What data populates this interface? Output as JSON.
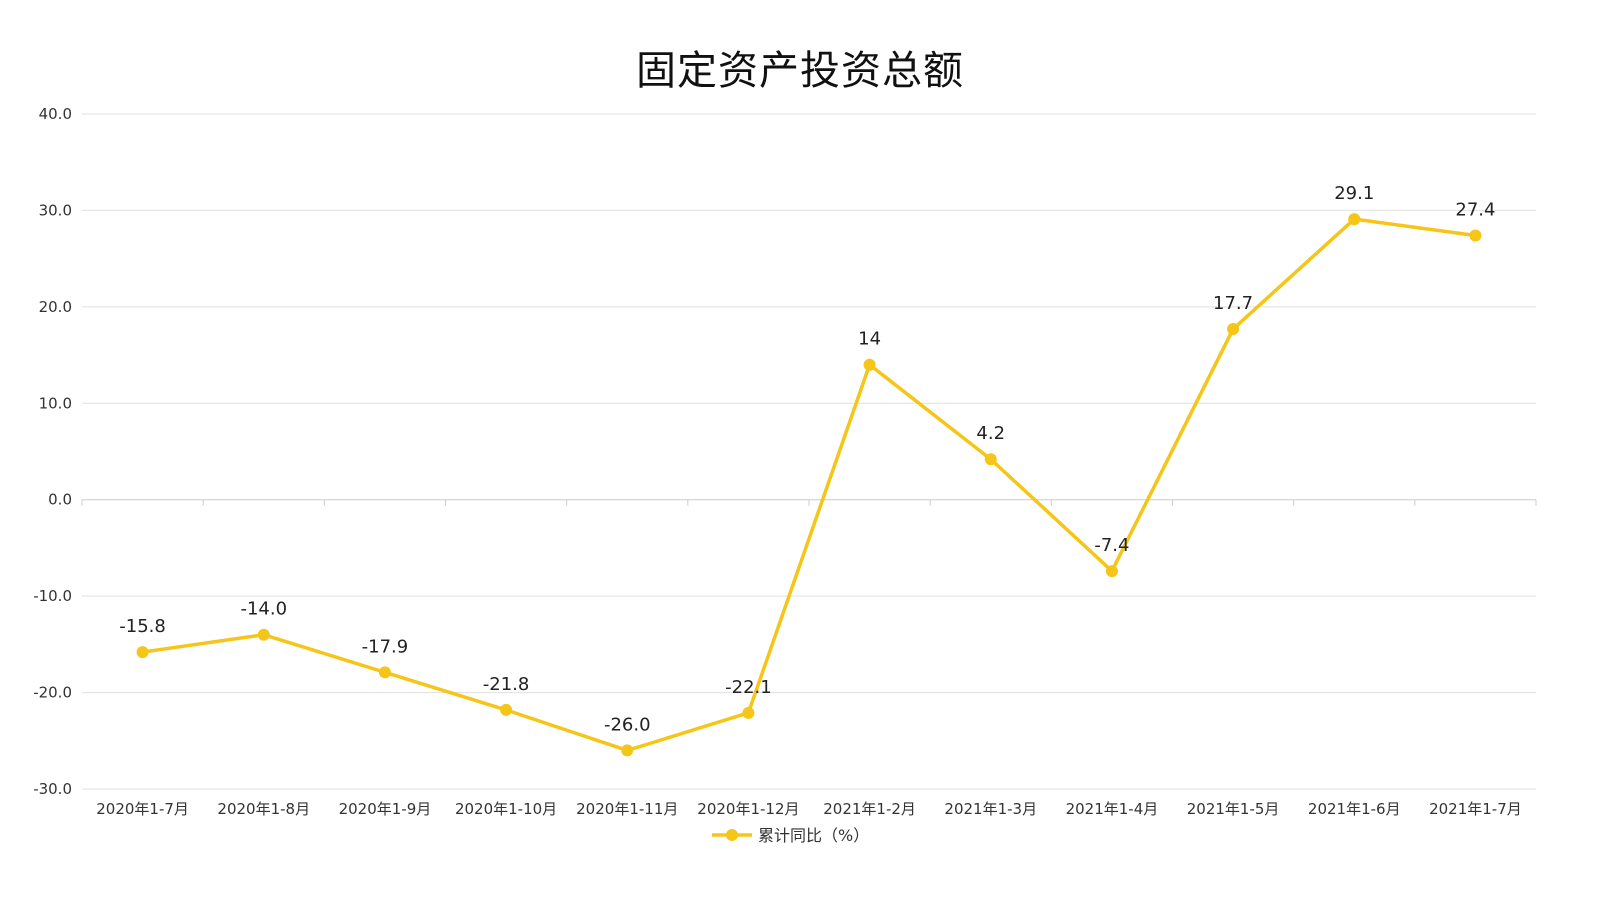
{
  "chart_data": {
    "type": "line",
    "title": "固定资产投资总额",
    "categories": [
      "2020年1-7月",
      "2020年1-8月",
      "2020年1-9月",
      "2020年1-10月",
      "2020年1-11月",
      "2020年1-12月",
      "2021年1-2月",
      "2021年1-3月",
      "2021年1-4月",
      "2021年1-5月",
      "2021年1-6月",
      "2021年1-7月"
    ],
    "series": [
      {
        "name": "累计同比（%）",
        "values": [
          -15.8,
          -14.0,
          -17.9,
          -21.8,
          -26.0,
          -22.1,
          14,
          4.2,
          -7.4,
          17.7,
          29.1,
          27.4
        ],
        "labels": [
          "-15.8",
          "-14.0",
          "-17.9",
          "-21.8",
          "-26.0",
          "-22.1",
          "14",
          "4.2",
          "-7.4",
          "17.7",
          "29.1",
          "27.4"
        ],
        "color": "#F5C518"
      }
    ],
    "yticks": [
      "40.0",
      "30.0",
      "20.0",
      "10.0",
      "0.0",
      "-10.0",
      "-20.0",
      "-30.0"
    ],
    "ylim": [
      -30,
      40
    ],
    "xlabel": "",
    "ylabel": "",
    "grid": true,
    "legend_position": "bottom-center"
  }
}
